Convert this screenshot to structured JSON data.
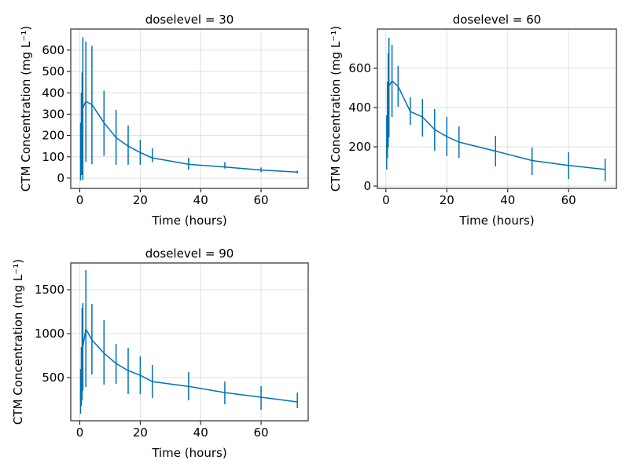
{
  "chart_data": [
    {
      "type": "line",
      "title": "doselevel = 30",
      "xlabel": "Time (hours)",
      "ylabel": "CTM Concentration (mg L⁻¹)",
      "xlim": [
        -3,
        75.6
      ],
      "ylim": [
        -48,
        699
      ],
      "xticks": [
        0,
        20,
        40,
        60
      ],
      "yticks": [
        0,
        100,
        200,
        300,
        400,
        500,
        600
      ],
      "grid": true,
      "color": "#0072b2",
      "x": [
        0.25,
        0.5,
        0.75,
        1,
        2,
        4,
        8,
        12,
        16,
        20,
        24,
        36,
        48,
        60,
        72
      ],
      "mean": [
        100,
        200,
        280,
        330,
        360,
        345,
        260,
        190,
        150,
        120,
        95,
        65,
        52,
        38,
        28
      ],
      "lower": [
        -10,
        15,
        15,
        -10,
        77,
        65,
        105,
        63,
        63,
        63,
        75,
        40,
        45,
        28,
        22
      ],
      "upper": [
        260,
        400,
        495,
        660,
        640,
        620,
        410,
        320,
        247,
        180,
        140,
        95,
        75,
        50,
        35
      ]
    },
    {
      "type": "line",
      "title": "doselevel = 60",
      "xlabel": "Time (hours)",
      "ylabel": "CTM Concentration (mg L⁻¹)",
      "xlim": [
        -2.8,
        75.7
      ],
      "ylim": [
        -12,
        800
      ],
      "xticks": [
        0,
        20,
        40,
        60
      ],
      "yticks": [
        0,
        200,
        400,
        600
      ],
      "grid": true,
      "color": "#0072b2",
      "x": [
        0.25,
        0.5,
        0.75,
        1,
        2,
        4,
        8,
        12,
        16,
        20,
        24,
        36,
        48,
        60,
        72
      ],
      "mean": [
        300,
        350,
        450,
        510,
        536,
        508,
        380,
        352,
        288,
        252,
        224,
        178,
        130,
        105,
        85
      ],
      "lower": [
        84,
        144,
        196,
        248,
        352,
        404,
        312,
        252,
        180,
        152,
        144,
        100,
        56,
        36,
        24
      ],
      "upper": [
        360,
        532,
        676,
        756,
        720,
        612,
        452,
        444,
        392,
        352,
        304,
        256,
        196,
        172,
        140
      ]
    },
    {
      "type": "line",
      "title": "doselevel = 90",
      "xlabel": "Time (hours)",
      "ylabel": "CTM Concentration (mg L⁻¹)",
      "xlim": [
        -3,
        75.6
      ],
      "ylim": [
        9,
        1804
      ],
      "xticks": [
        0,
        20,
        40,
        60
      ],
      "yticks": [
        500,
        1000,
        1500
      ],
      "grid": true,
      "color": "#0072b2",
      "x": [
        0.25,
        0.5,
        0.75,
        1,
        2,
        4,
        8,
        12,
        16,
        20,
        24,
        36,
        48,
        60,
        72
      ],
      "mean": [
        300,
        500,
        700,
        850,
        1053,
        929,
        777,
        660,
        580,
        527,
        455,
        400,
        330,
        277,
        223
      ],
      "lower": [
        89,
        179,
        241,
        348,
        393,
        536,
        420,
        429,
        312,
        312,
        268,
        241,
        196,
        134,
        152
      ],
      "upper": [
        598,
        848,
        1295,
        1348,
        1723,
        1339,
        1152,
        884,
        839,
        741,
        643,
        562,
        455,
        402,
        330
      ]
    }
  ]
}
